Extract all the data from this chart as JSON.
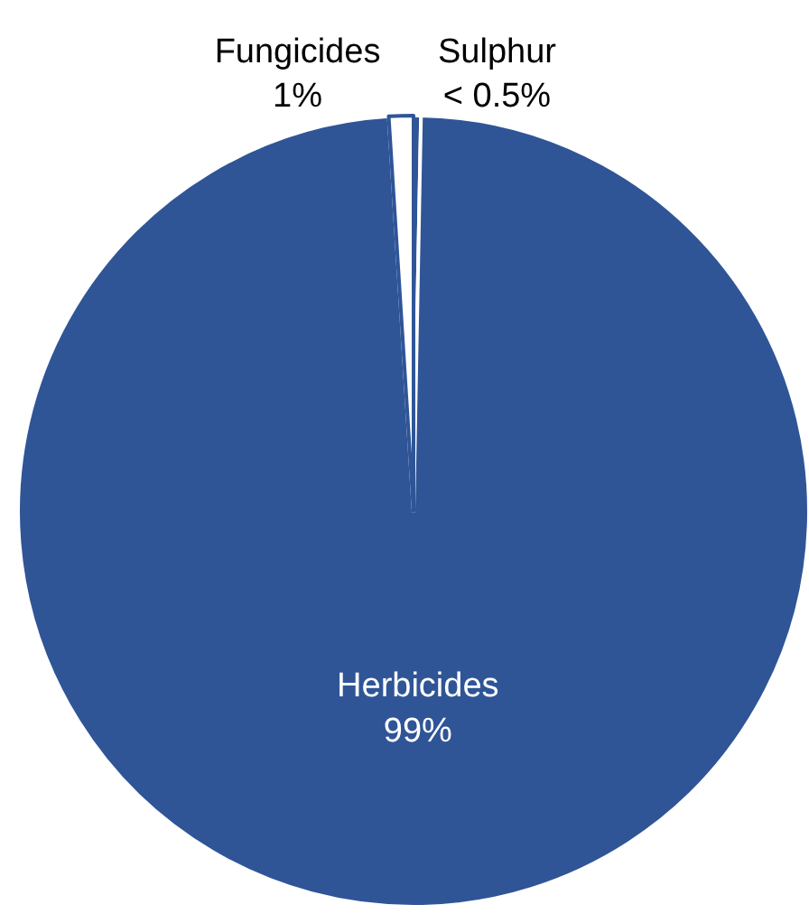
{
  "chart_data": {
    "type": "pie",
    "categories": [
      "Sulphur",
      "Herbicides",
      "Fungicides"
    ],
    "values": [
      0.3,
      98.7,
      1
    ],
    "value_labels": [
      "< 0.5%",
      "99%",
      "1%"
    ],
    "colors": [
      "#2f5597",
      "#2f5597",
      "#ffffff"
    ],
    "legend": false
  }
}
